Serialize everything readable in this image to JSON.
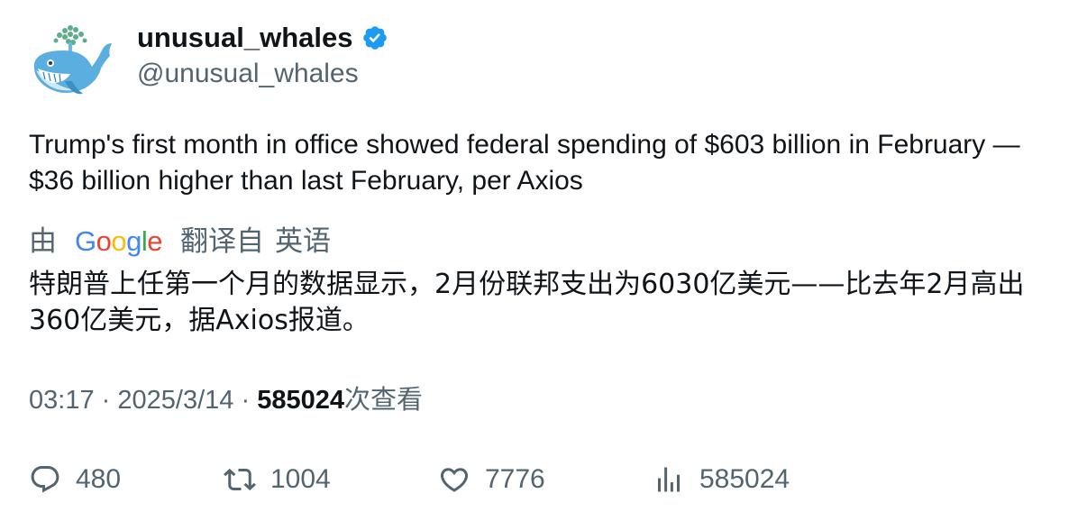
{
  "user": {
    "display_name": "unusual_whales",
    "handle": "@unusual_whales",
    "avatar_icon": "whale-icon",
    "verified_icon": "verified-badge-icon",
    "verified_color": "#1d9bf0"
  },
  "tweet": {
    "text": "Trump's first month in office showed federal spending of $603 billion in February — $36 billion higher than last February, per Axios"
  },
  "translation": {
    "by_label": "由",
    "provider": "Google",
    "from_label": "翻译自",
    "language": "英语",
    "text": "特朗普上任第一个月的数据显示，2月份联邦支出为6030亿美元——比去年2月高出360亿美元，据Axios报道。"
  },
  "meta": {
    "time": "03:17",
    "date": "2025/3/14",
    "separator": "·",
    "views": "585024",
    "views_label": "次查看"
  },
  "actions": {
    "reply": {
      "icon": "reply-icon",
      "count": "480"
    },
    "retweet": {
      "icon": "retweet-icon",
      "count": "1004"
    },
    "like": {
      "icon": "heart-icon",
      "count": "7776"
    },
    "views": {
      "icon": "analytics-icon",
      "count": "585024"
    }
  }
}
